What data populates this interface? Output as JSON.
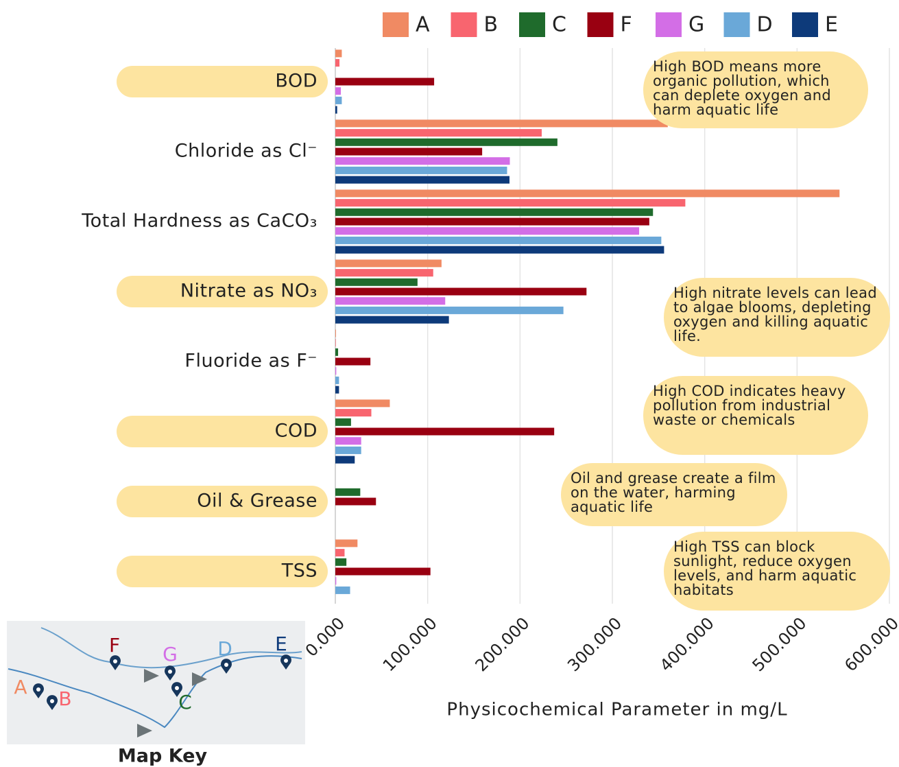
{
  "chart_data": {
    "type": "barh",
    "categories": [
      "BOD",
      "Chloride as Cl⁻",
      "Total Hardness as CaCO₃",
      "Nitrate as NO₃",
      "Fluoride as F⁻",
      "COD",
      "Oil & Grease",
      "TSS"
    ],
    "category_pill": [
      true,
      false,
      false,
      true,
      false,
      true,
      true,
      true
    ],
    "series": [
      {
        "name": "A",
        "color": "#f08a63",
        "values": [
          7,
          360,
          546,
          115,
          0.7,
          59,
          0,
          24
        ]
      },
      {
        "name": "B",
        "color": "#f8656f",
        "values": [
          4.5,
          223.5,
          379,
          106,
          0.5,
          39,
          0,
          10
        ]
      },
      {
        "name": "C",
        "color": "#1f6b2c",
        "values": [
          0,
          240.5,
          344,
          89,
          3,
          17,
          27,
          12
        ]
      },
      {
        "name": "F",
        "color": "#990011",
        "values": [
          107,
          159,
          340,
          272,
          38,
          237,
          44,
          103
        ]
      },
      {
        "name": "G",
        "color": "#d36ee6",
        "values": [
          6,
          189,
          329,
          119,
          1,
          28,
          0,
          1
        ]
      },
      {
        "name": "D",
        "color": "#6aa8d8",
        "values": [
          7,
          186,
          353,
          247,
          4,
          28,
          0,
          16
        ]
      },
      {
        "name": "E",
        "color": "#0d3a7a",
        "values": [
          2,
          188.6,
          356,
          123,
          4,
          21,
          0,
          0
        ]
      }
    ],
    "xlim": [
      0,
      600
    ],
    "xticks": [
      {
        "value": 0,
        "label": "0.000"
      },
      {
        "value": 100,
        "label": "100.000"
      },
      {
        "value": 200,
        "label": "200.000"
      },
      {
        "value": 300,
        "label": "300.000"
      },
      {
        "value": 400,
        "label": "400.000"
      },
      {
        "value": 500,
        "label": "500.000"
      },
      {
        "value": 600,
        "label": "600.000"
      }
    ],
    "grid": true,
    "legend": "top",
    "xlabel": "Physicochemical Parameter in mg/L",
    "annotations": [
      "High BOD means more organic pollution, which can deplete oxygen and harm aquatic life",
      "High nitrate levels can lead to algae blooms, depleting oxygen and killing aquatic life.",
      "High COD indicates heavy pollution from industrial waste or chemicals",
      "Oil and grease create a film on the water, harming aquatic life",
      "High TSS can block sunlight, reduce oxygen levels, and harm aquatic habitats"
    ],
    "map_title": "Map Key"
  }
}
